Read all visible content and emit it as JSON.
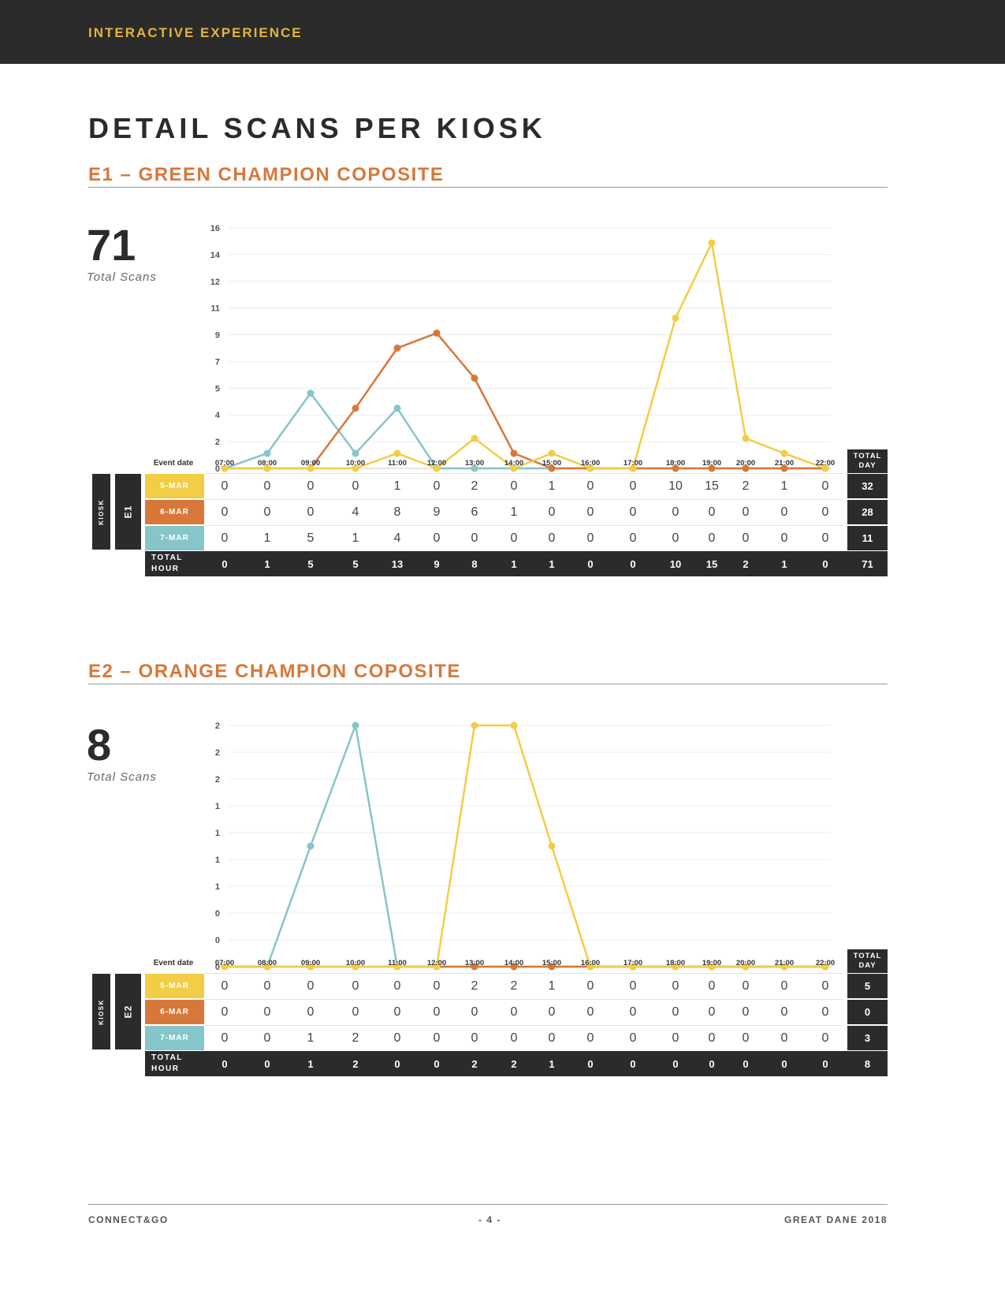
{
  "header": {
    "banner": "INTERACTIVE EXPERIENCE"
  },
  "page_title": "DETAIL SCANS PER KIOSK",
  "footer": {
    "left": "CONNECT&GO",
    "center": "- 4 -",
    "right": "GREAT DANE 2018"
  },
  "colors": {
    "5-MAR": "#f2cd45",
    "6-MAR": "#d8773a",
    "7-MAR": "#86c5c9",
    "dark": "#2b2b2b",
    "accent": "#d8773a"
  },
  "table_labels": {
    "event_date": "Event date",
    "kiosk": "KIOSK",
    "total_hour": [
      "TOTAL",
      "HOUR"
    ],
    "total_day": [
      "TOTAL",
      "DAY"
    ]
  },
  "sections": [
    {
      "title": "E1 – GREEN CHAMPION COPOSITE",
      "kiosk_id": "E1",
      "total_scans": "71",
      "total_caption": "Total Scans",
      "hour_totals": [
        0,
        1,
        5,
        5,
        13,
        9,
        8,
        1,
        1,
        0,
        0,
        10,
        15,
        2,
        1,
        0
      ],
      "grand_total": "71",
      "chart_data": {
        "type": "line",
        "x": [
          "07:00",
          "08:00",
          "09:00",
          "10:00",
          "11:00",
          "12:00",
          "13:00",
          "14:00",
          "15:00",
          "16:00",
          "17:00",
          "18:00",
          "19:00",
          "20:00",
          "21:00",
          "22:00"
        ],
        "y_ticks": [
          "0",
          "2",
          "4",
          "5",
          "7",
          "9",
          "11",
          "12",
          "14",
          "16"
        ],
        "ylim": [
          0,
          16
        ],
        "grid": true,
        "series": [
          {
            "name": "5-MAR",
            "color": "#f2cd45",
            "values": [
              0,
              0,
              0,
              0,
              1,
              0,
              2,
              0,
              1,
              0,
              0,
              10,
              15,
              2,
              1,
              0
            ],
            "day_total": "32"
          },
          {
            "name": "6-MAR",
            "color": "#d8773a",
            "values": [
              0,
              0,
              0,
              4,
              8,
              9,
              6,
              1,
              0,
              0,
              0,
              0,
              0,
              0,
              0,
              0
            ],
            "day_total": "28"
          },
          {
            "name": "7-MAR",
            "color": "#86c5c9",
            "values": [
              0,
              1,
              5,
              1,
              4,
              0,
              0,
              0,
              0,
              0,
              0,
              0,
              0,
              0,
              0,
              0
            ],
            "day_total": "11"
          }
        ]
      }
    },
    {
      "title": "E2 – ORANGE CHAMPION COPOSITE",
      "kiosk_id": "E2",
      "total_scans": "8",
      "total_caption": "Total Scans",
      "hour_totals": [
        0,
        0,
        1,
        2,
        0,
        0,
        2,
        2,
        1,
        0,
        0,
        0,
        0,
        0,
        0,
        0
      ],
      "grand_total": "8",
      "chart_data": {
        "type": "line",
        "x": [
          "07:00",
          "08:00",
          "09:00",
          "10:00",
          "11:00",
          "12:00",
          "13:00",
          "14:00",
          "15:00",
          "16:00",
          "17:00",
          "18:00",
          "19:00",
          "20:00",
          "21:00",
          "22:00"
        ],
        "y_ticks": [
          "0",
          "0",
          "0",
          "1",
          "1",
          "1",
          "1",
          "2",
          "2",
          "2"
        ],
        "ylim": [
          0,
          2
        ],
        "grid": true,
        "series": [
          {
            "name": "5-MAR",
            "color": "#f2cd45",
            "values": [
              0,
              0,
              0,
              0,
              0,
              0,
              2,
              2,
              1,
              0,
              0,
              0,
              0,
              0,
              0,
              0
            ],
            "day_total": "5"
          },
          {
            "name": "6-MAR",
            "color": "#d8773a",
            "values": [
              0,
              0,
              0,
              0,
              0,
              0,
              0,
              0,
              0,
              0,
              0,
              0,
              0,
              0,
              0,
              0
            ],
            "day_total": "0"
          },
          {
            "name": "7-MAR",
            "color": "#86c5c9",
            "values": [
              0,
              0,
              1,
              2,
              0,
              0,
              0,
              0,
              0,
              0,
              0,
              0,
              0,
              0,
              0,
              0
            ],
            "day_total": "3"
          }
        ]
      }
    }
  ]
}
